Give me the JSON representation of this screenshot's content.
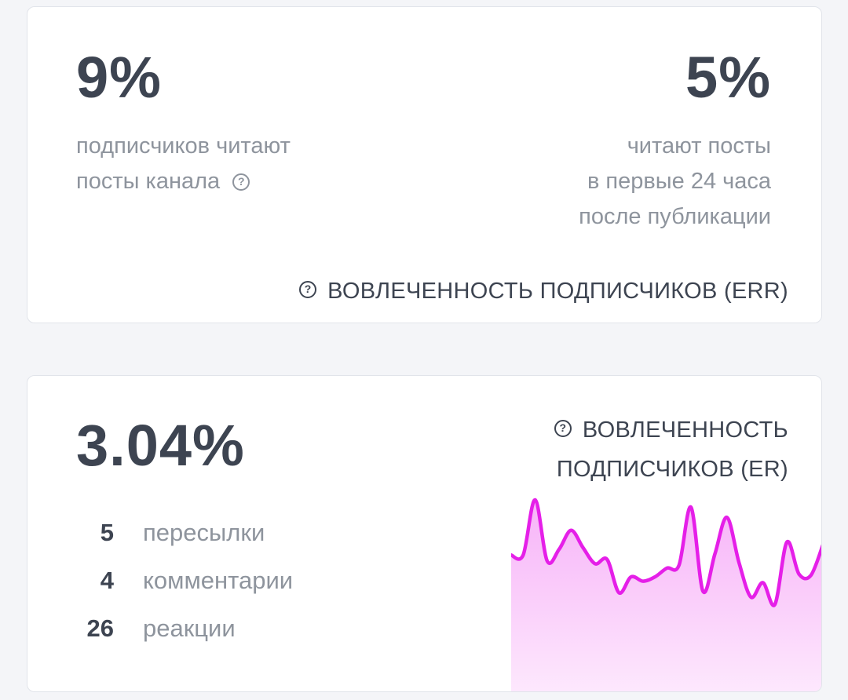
{
  "err_card": {
    "subscribers_read_value": "9%",
    "subscribers_read_desc_line1": "подписчиков читают",
    "subscribers_read_desc_line2": "посты канала",
    "first_day_value": "5%",
    "first_day_desc_line1": "читают посты",
    "first_day_desc_line2": "в первые 24 часа",
    "first_day_desc_line3": "после публикации",
    "metric_label": "ВОВЛЕЧЕННОСТЬ ПОДПИСЧИКОВ (ERR)",
    "help_icon": "question-circle-icon"
  },
  "er_card": {
    "value": "3.04%",
    "metric_label_line1": "ВОВЛЕЧЕННОСТЬ",
    "metric_label_line2": "ПОДПИСЧИКОВ (ER)",
    "help_icon": "question-circle-icon",
    "stats": [
      {
        "count": "5",
        "label": "пересылки"
      },
      {
        "count": "4",
        "label": "комментарии"
      },
      {
        "count": "26",
        "label": "реакции"
      }
    ]
  },
  "icon_glyph": "?",
  "chart_data": {
    "type": "area",
    "title": "",
    "xlabel": "",
    "ylabel": "",
    "color": "#e51fe8",
    "fill_top": "#f7b3f8",
    "fill_bottom": "#fde8fd",
    "ylim": [
      0,
      1
    ],
    "values": [
      0.62,
      0.62,
      1.0,
      0.58,
      0.66,
      0.79,
      0.67,
      0.56,
      0.59,
      0.36,
      0.47,
      0.44,
      0.47,
      0.53,
      0.55,
      0.95,
      0.37,
      0.63,
      0.88,
      0.57,
      0.33,
      0.43,
      0.28,
      0.71,
      0.49,
      0.48,
      0.69
    ]
  }
}
